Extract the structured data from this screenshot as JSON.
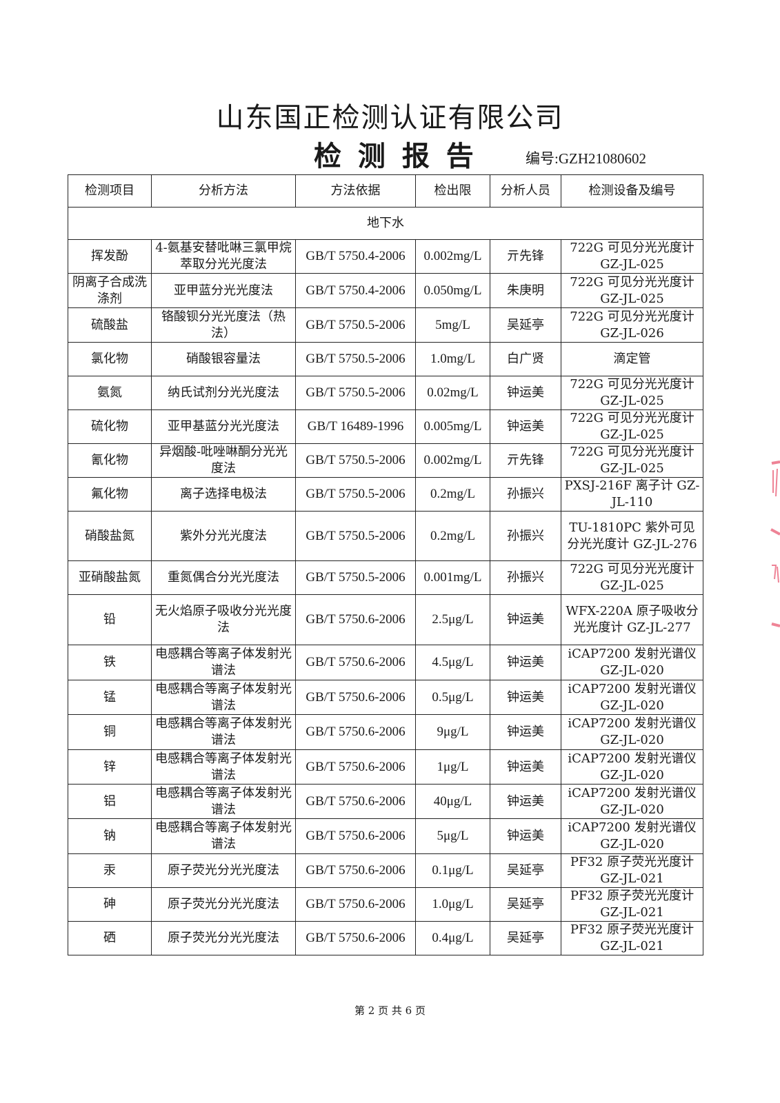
{
  "header": {
    "company": "山东国正检测认证有限公司",
    "title": "检 测 报 告",
    "report_no_label": "编号:",
    "report_no": "GZH21080602"
  },
  "table": {
    "columns": [
      "检测项目",
      "分析方法",
      "方法依据",
      "检出限",
      "分析人员",
      "检测设备及编号"
    ],
    "section": "地下水",
    "rows": [
      {
        "item": "挥发酚",
        "method": "4-氨基安替吡啉三氯甲烷萃取分光光度法",
        "standard": "GB/T 5750.4-2006",
        "limit": "0.002mg/L",
        "analyst": "亓先锋",
        "equipment": "722G 可见分光光度计 GZ-JL-025"
      },
      {
        "item": "阴离子合成洗涤剂",
        "method": "亚甲蓝分光光度法",
        "standard": "GB/T 5750.4-2006",
        "limit": "0.050mg/L",
        "analyst": "朱庚明",
        "equipment": "722G 可见分光光度计 GZ-JL-025"
      },
      {
        "item": "硫酸盐",
        "method": "铬酸钡分光光度法（热法）",
        "standard": "GB/T 5750.5-2006",
        "limit": "5mg/L",
        "analyst": "吴延亭",
        "equipment": "722G 可见分光光度计 GZ-JL-026"
      },
      {
        "item": "氯化物",
        "method": "硝酸银容量法",
        "standard": "GB/T 5750.5-2006",
        "limit": "1.0mg/L",
        "analyst": "白广贤",
        "equipment": "滴定管"
      },
      {
        "item": "氨氮",
        "method": "纳氏试剂分光光度法",
        "standard": "GB/T 5750.5-2006",
        "limit": "0.02mg/L",
        "analyst": "钟运美",
        "equipment": "722G 可见分光光度计 GZ-JL-025"
      },
      {
        "item": "硫化物",
        "method": "亚甲基蓝分光光度法",
        "standard": "GB/T 16489-1996",
        "limit": "0.005mg/L",
        "analyst": "钟运美",
        "equipment": "722G 可见分光光度计 GZ-JL-025"
      },
      {
        "item": "氰化物",
        "method": "异烟酸-吡唑啉酮分光光度法",
        "standard": "GB/T 5750.5-2006",
        "limit": "0.002mg/L",
        "analyst": "亓先锋",
        "equipment": "722G 可见分光光度计 GZ-JL-025"
      },
      {
        "item": "氟化物",
        "method": "离子选择电极法",
        "standard": "GB/T 5750.5-2006",
        "limit": "0.2mg/L",
        "analyst": "孙振兴",
        "equipment": "PXSJ-216F 离子计 GZ-JL-110"
      },
      {
        "item": "硝酸盐氮",
        "method": "紫外分光光度法",
        "standard": "GB/T 5750.5-2006",
        "limit": "0.2mg/L",
        "analyst": "孙振兴",
        "equipment": "TU-1810PC 紫外可见分光光度计 GZ-JL-276"
      },
      {
        "item": "亚硝酸盐氮",
        "method": "重氮偶合分光光度法",
        "standard": "GB/T 5750.5-2006",
        "limit": "0.001mg/L",
        "analyst": "孙振兴",
        "equipment": "722G 可见分光光度计 GZ-JL-025"
      },
      {
        "item": "铅",
        "method": "无火焰原子吸收分光光度法",
        "standard": "GB/T 5750.6-2006",
        "limit": "2.5μg/L",
        "analyst": "钟运美",
        "equipment": "WFX-220A 原子吸收分光光度计 GZ-JL-277"
      },
      {
        "item": "铁",
        "method": "电感耦合等离子体发射光谱法",
        "standard": "GB/T 5750.6-2006",
        "limit": "4.5μg/L",
        "analyst": "钟运美",
        "equipment": "iCAP7200 发射光谱仪 GZ-JL-020"
      },
      {
        "item": "锰",
        "method": "电感耦合等离子体发射光谱法",
        "standard": "GB/T 5750.6-2006",
        "limit": "0.5μg/L",
        "analyst": "钟运美",
        "equipment": "iCAP7200 发射光谱仪 GZ-JL-020"
      },
      {
        "item": "铜",
        "method": "电感耦合等离子体发射光谱法",
        "standard": "GB/T 5750.6-2006",
        "limit": "9μg/L",
        "analyst": "钟运美",
        "equipment": "iCAP7200 发射光谱仪 GZ-JL-020"
      },
      {
        "item": "锌",
        "method": "电感耦合等离子体发射光谱法",
        "standard": "GB/T 5750.6-2006",
        "limit": "1μg/L",
        "analyst": "钟运美",
        "equipment": "iCAP7200 发射光谱仪 GZ-JL-020"
      },
      {
        "item": "铝",
        "method": "电感耦合等离子体发射光谱法",
        "standard": "GB/T 5750.6-2006",
        "limit": "40μg/L",
        "analyst": "钟运美",
        "equipment": "iCAP7200 发射光谱仪 GZ-JL-020"
      },
      {
        "item": "钠",
        "method": "电感耦合等离子体发射光谱法",
        "standard": "GB/T 5750.6-2006",
        "limit": "5μg/L",
        "analyst": "钟运美",
        "equipment": "iCAP7200 发射光谱仪 GZ-JL-020"
      },
      {
        "item": "汞",
        "method": "原子荧光分光光度法",
        "standard": "GB/T 5750.6-2006",
        "limit": "0.1μg/L",
        "analyst": "吴延亭",
        "equipment": "PF32 原子荧光光度计 GZ-JL-021"
      },
      {
        "item": "砷",
        "method": "原子荧光分光光度法",
        "standard": "GB/T 5750.6-2006",
        "limit": "1.0μg/L",
        "analyst": "吴延亭",
        "equipment": "PF32 原子荧光光度计 GZ-JL-021"
      },
      {
        "item": "硒",
        "method": "原子荧光分光光度法",
        "standard": "GB/T 5750.6-2006",
        "limit": "0.4μg/L",
        "analyst": "吴延亭",
        "equipment": "PF32 原子荧光光度计 GZ-JL-021"
      }
    ]
  },
  "footer": {
    "page": "第 2 页 共 6 页"
  },
  "colors": {
    "stamp": "#e8506a"
  }
}
